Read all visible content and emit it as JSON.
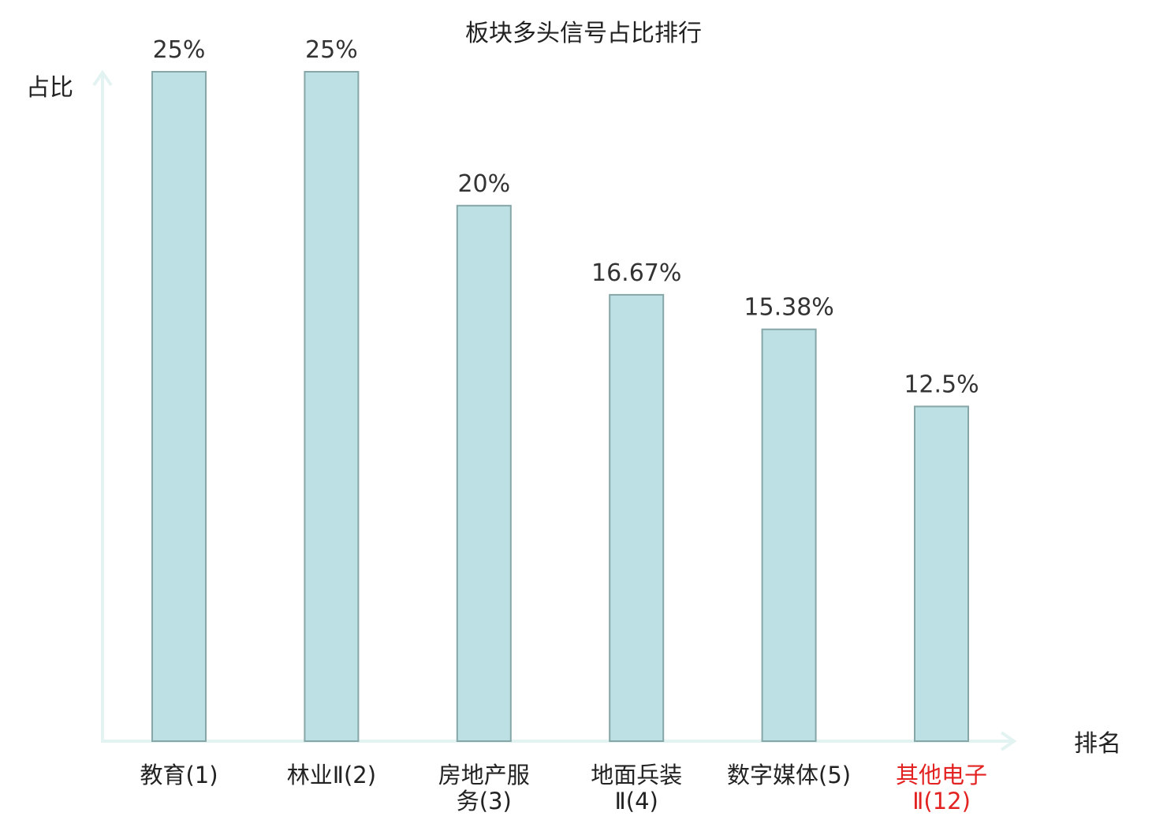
{
  "chart_data": {
    "type": "bar",
    "title": "板块多头信号占比排行",
    "xlabel": "排名",
    "ylabel": "占比",
    "categories": [
      "教育(1)",
      "林业Ⅱ(2)",
      "房地产服务(3)",
      "地面兵装Ⅱ(4)",
      "数字媒体(5)",
      "其他电子Ⅱ(12)"
    ],
    "category_lines": [
      [
        "教育(1)"
      ],
      [
        "林业Ⅱ(2)"
      ],
      [
        "房地产服",
        "务(3)"
      ],
      [
        "地面兵装",
        "Ⅱ(4)"
      ],
      [
        "数字媒体(5)"
      ],
      [
        "其他电子",
        "Ⅱ(12)"
      ]
    ],
    "values": [
      25,
      25,
      20,
      16.67,
      15.38,
      12.5
    ],
    "value_labels": [
      "25%",
      "25%",
      "20%",
      "16.67%",
      "15.38%",
      "12.5%"
    ],
    "highlight_index": 5,
    "ylim": [
      0,
      25
    ],
    "grid": false,
    "legend": "none"
  },
  "colors": {
    "bar_fill": "#bce0e3",
    "bar_stroke": "#86a6a8",
    "axis": "#e3f3f1",
    "highlight_label": "#e32222",
    "text": "#222222"
  }
}
